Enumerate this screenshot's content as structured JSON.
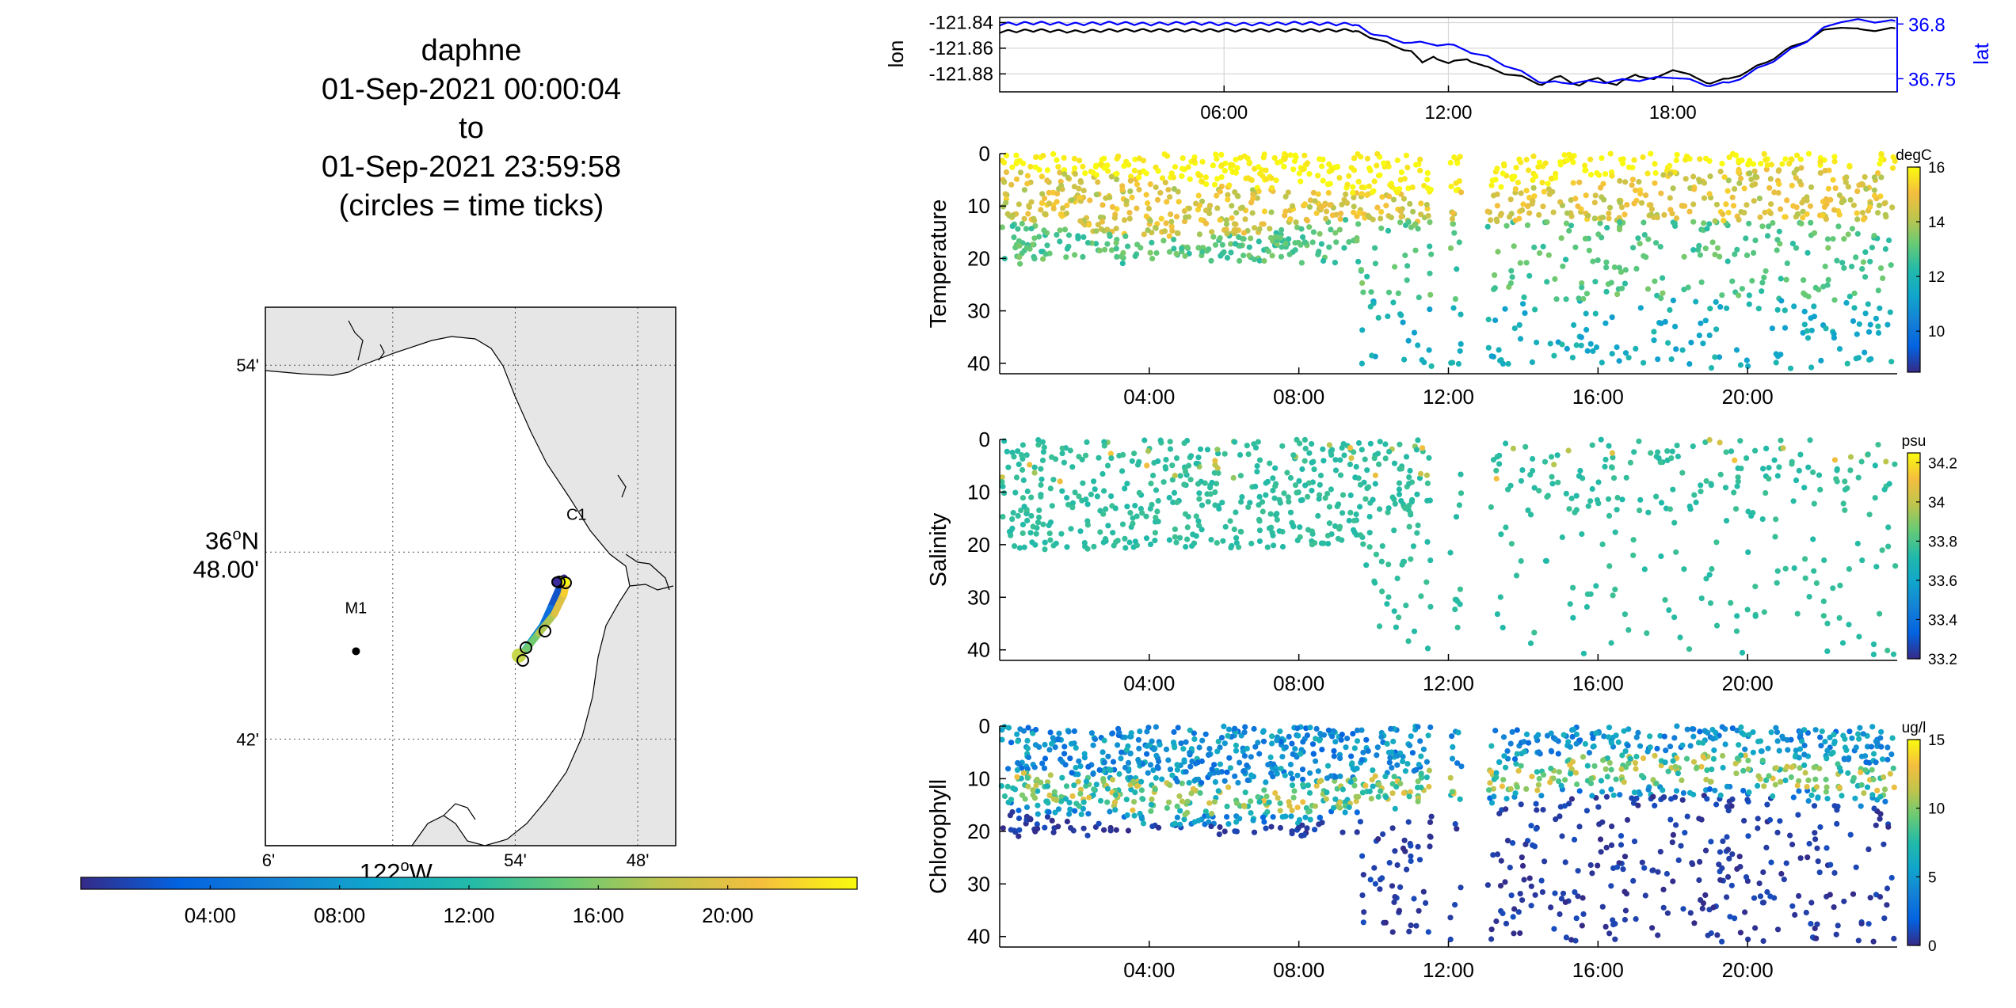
{
  "title_lines": [
    "daphne",
    "01-Sep-2021 00:00:04",
    "to",
    "01-Sep-2021 23:59:58",
    "(circles = time ticks)"
  ],
  "colors": {
    "lon_line": "#000000",
    "lat_line": "#0000ff",
    "land": "#e6e6e6",
    "parula_low": "#352a87",
    "parula_high": "#f9fb0e"
  },
  "map": {
    "lat_ticks": [
      "54'",
      "36ᴼN\n48.00'",
      "42'"
    ],
    "lat_label_line1": "36",
    "lat_label_sup": "o",
    "lat_label_N": "N",
    "lat_label_line2": "48.00'",
    "lon_ticks": [
      "6'",
      "54'",
      "48'"
    ],
    "lon_label_main": "122",
    "lon_label_sup": "o",
    "lon_label_W": "W",
    "stations": [
      {
        "name": "M1",
        "lon": -122.03,
        "lat": 36.747
      },
      {
        "name": "C1",
        "lon": -121.85,
        "lat": 36.797
      }
    ],
    "time_colorbar_ticks": [
      "04:00",
      "08:00",
      "12:00",
      "16:00",
      "20:00"
    ]
  },
  "chart_data": [
    {
      "type": "line",
      "title": "",
      "xlabel": "",
      "ylabel_left": "lon",
      "ylabel_right": "lat",
      "x_ticks": [
        "06:00",
        "12:00",
        "18:00"
      ],
      "y_left_ticks": [
        "-121.84",
        "-121.86",
        "-121.88"
      ],
      "y_right_ticks": [
        "36.8",
        "36.75"
      ],
      "xlim": [
        0,
        24
      ],
      "ylim_left": [
        -121.894,
        -121.836
      ],
      "ylim_right": [
        36.738,
        36.806
      ],
      "grid": true,
      "series": [
        {
          "name": "lon",
          "axis": "left",
          "points": [
            [
              0,
              -121.847
            ],
            [
              1,
              -121.846
            ],
            [
              2,
              -121.847
            ],
            [
              3,
              -121.846
            ],
            [
              4,
              -121.846
            ],
            [
              5,
              -121.846
            ],
            [
              6,
              -121.846
            ],
            [
              7,
              -121.846
            ],
            [
              8,
              -121.846
            ],
            [
              9,
              -121.846
            ],
            [
              9.5,
              -121.846
            ],
            [
              10,
              -121.852
            ],
            [
              10.5,
              -121.858
            ],
            [
              11,
              -121.862
            ],
            [
              11.3,
              -121.872
            ],
            [
              11.6,
              -121.866
            ],
            [
              12,
              -121.872
            ],
            [
              12.5,
              -121.868
            ],
            [
              13,
              -121.875
            ],
            [
              13.6,
              -121.88
            ],
            [
              14,
              -121.883
            ],
            [
              14.5,
              -121.888
            ],
            [
              15,
              -121.882
            ],
            [
              15.5,
              -121.889
            ],
            [
              16,
              -121.883
            ],
            [
              16.5,
              -121.889
            ],
            [
              17,
              -121.88
            ],
            [
              17.5,
              -121.885
            ],
            [
              18,
              -121.876
            ],
            [
              18.5,
              -121.882
            ],
            [
              19,
              -121.887
            ],
            [
              19.5,
              -121.884
            ],
            [
              20,
              -121.878
            ],
            [
              20.5,
              -121.871
            ],
            [
              21,
              -121.862
            ],
            [
              21.5,
              -121.855
            ],
            [
              22,
              -121.847
            ],
            [
              22.5,
              -121.843
            ],
            [
              23,
              -121.846
            ],
            [
              24,
              -121.845
            ]
          ]
        },
        {
          "name": "lat",
          "axis": "right",
          "points": [
            [
              0,
              36.8
            ],
            [
              1,
              36.801
            ],
            [
              2,
              36.8
            ],
            [
              3,
              36.801
            ],
            [
              4,
              36.8
            ],
            [
              5,
              36.801
            ],
            [
              6,
              36.8
            ],
            [
              7,
              36.8
            ],
            [
              8,
              36.801
            ],
            [
              9,
              36.8
            ],
            [
              9.5,
              36.8
            ],
            [
              10,
              36.791
            ],
            [
              10.5,
              36.786
            ],
            [
              11,
              36.783
            ],
            [
              11.5,
              36.782
            ],
            [
              12,
              36.781
            ],
            [
              12.5,
              36.776
            ],
            [
              13,
              36.77
            ],
            [
              13.5,
              36.763
            ],
            [
              14,
              36.755
            ],
            [
              14.5,
              36.747
            ],
            [
              15,
              36.746
            ],
            [
              15.5,
              36.747
            ],
            [
              16,
              36.747
            ],
            [
              16.5,
              36.748
            ],
            [
              17,
              36.749
            ],
            [
              17.5,
              36.75
            ],
            [
              18,
              36.752
            ],
            [
              18.5,
              36.748
            ],
            [
              19,
              36.744
            ],
            [
              19.5,
              36.746
            ],
            [
              20,
              36.754
            ],
            [
              20.5,
              36.763
            ],
            [
              21,
              36.773
            ],
            [
              21.5,
              36.783
            ],
            [
              22,
              36.795
            ],
            [
              22.5,
              36.803
            ],
            [
              23,
              36.803
            ],
            [
              24,
              36.802
            ]
          ]
        }
      ]
    },
    {
      "type": "scatter",
      "title": "",
      "ylabel": "Temperature",
      "colorbar_label": "degC",
      "colorbar_ticks": [
        "16",
        "14",
        "12",
        "10"
      ],
      "clim": [
        8.5,
        16
      ],
      "x_ticks": [
        "04:00",
        "08:00",
        "12:00",
        "16:00",
        "20:00"
      ],
      "y_ticks": [
        "0",
        "10",
        "20",
        "30",
        "40"
      ],
      "xlim": [
        0,
        24
      ],
      "ylim": [
        0,
        42
      ],
      "y_reversed": true,
      "profile_model": "temperature",
      "points_generated": 1600
    },
    {
      "type": "scatter",
      "title": "",
      "ylabel": "Salinity",
      "colorbar_label": "psu",
      "colorbar_ticks": [
        "34.2",
        "34",
        "33.8",
        "33.6",
        "33.4",
        "33.2"
      ],
      "clim": [
        33.2,
        34.25
      ],
      "x_ticks": [
        "04:00",
        "08:00",
        "12:00",
        "16:00",
        "20:00"
      ],
      "y_ticks": [
        "0",
        "10",
        "20",
        "30",
        "40"
      ],
      "xlim": [
        0,
        24
      ],
      "ylim": [
        0,
        42
      ],
      "y_reversed": true,
      "profile_model": "salinity",
      "points_generated": 1100
    },
    {
      "type": "scatter",
      "title": "",
      "ylabel": "Chlorophyll",
      "colorbar_label": "ug/l",
      "colorbar_ticks": [
        "15",
        "10",
        "5",
        "0"
      ],
      "clim": [
        0,
        15
      ],
      "x_ticks": [
        "04:00",
        "08:00",
        "12:00",
        "16:00",
        "20:00"
      ],
      "y_ticks": [
        "0",
        "10",
        "20",
        "30",
        "40"
      ],
      "xlim": [
        0,
        24
      ],
      "ylim": [
        0,
        42
      ],
      "y_reversed": true,
      "profile_model": "chlorophyll",
      "points_generated": 1700
    }
  ]
}
